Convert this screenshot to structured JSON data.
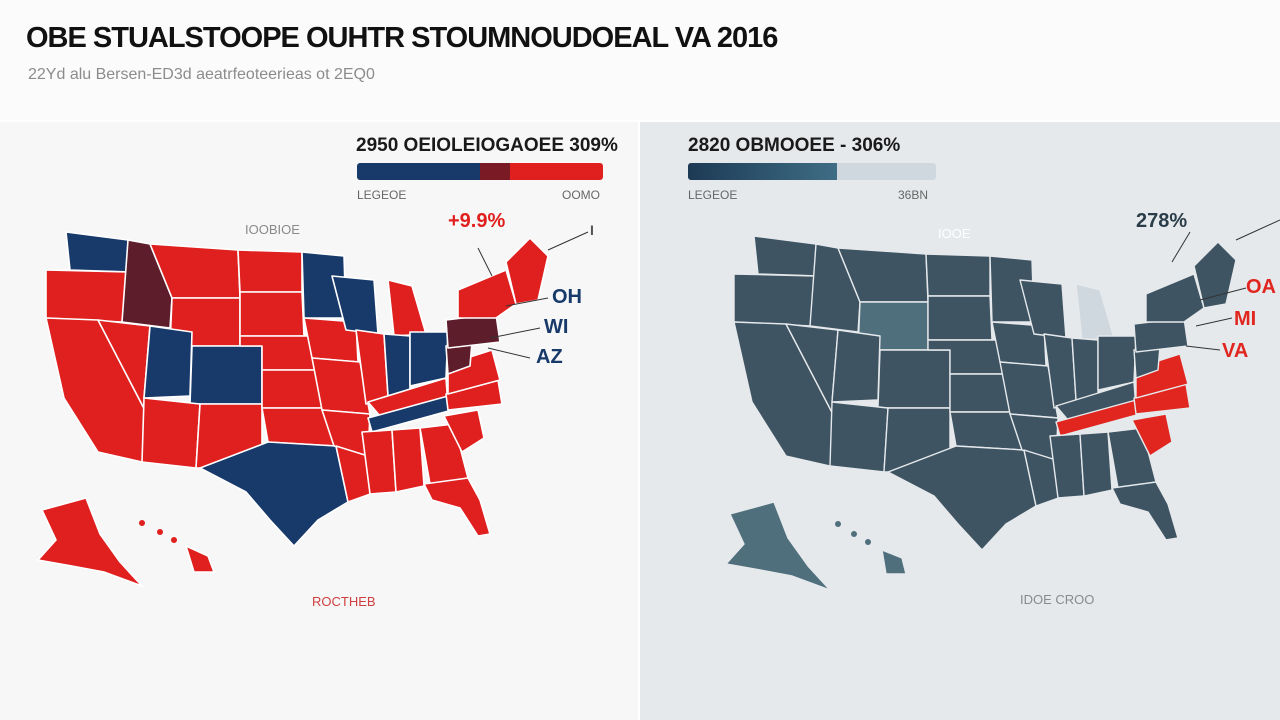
{
  "header": {
    "title": "OBE STUALSTOOPE OUHTR STOUMNOUDOEAL VA 2016",
    "subtitle": "22Yd alu Bersen-ED3d aeatrfeoteerieas ot 2EQ0"
  },
  "left_panel": {
    "bar_title": "2950 OEIOLEIOGAOEE 309%",
    "legend_left": "LEGEOE",
    "legend_right": "OOMO",
    "map_label": "IOOBIOE",
    "footer_label": "ROCTHEB",
    "callout_pct": "+9.9%",
    "callout_top_right": "I",
    "callouts": [
      "OH",
      "WI",
      "AZ"
    ],
    "bar": {
      "blue_fraction": 0.5,
      "dark_red_fraction": 0.12,
      "red_fraction": 0.38
    },
    "colors": {
      "red": "#e01f1f",
      "blue": "#173a6b",
      "dark": "#5e1d2b",
      "dark_red": "#7a1a24"
    }
  },
  "right_panel": {
    "bar_title": "2820 OBMOOEE - 306%",
    "legend_left": "LEGEOE",
    "legend_right": "36BN",
    "map_label": "IOOE",
    "footer_label": "IDOE CROO",
    "callout_pct": "278%",
    "callouts": [
      "OA",
      "MI",
      "VA"
    ],
    "bar": {
      "blue_fraction": 0.6
    },
    "colors": {
      "slate": "#3e5462",
      "teal": "#4f6f7d",
      "light": "#cfd8de",
      "red": "#e0261f"
    }
  }
}
